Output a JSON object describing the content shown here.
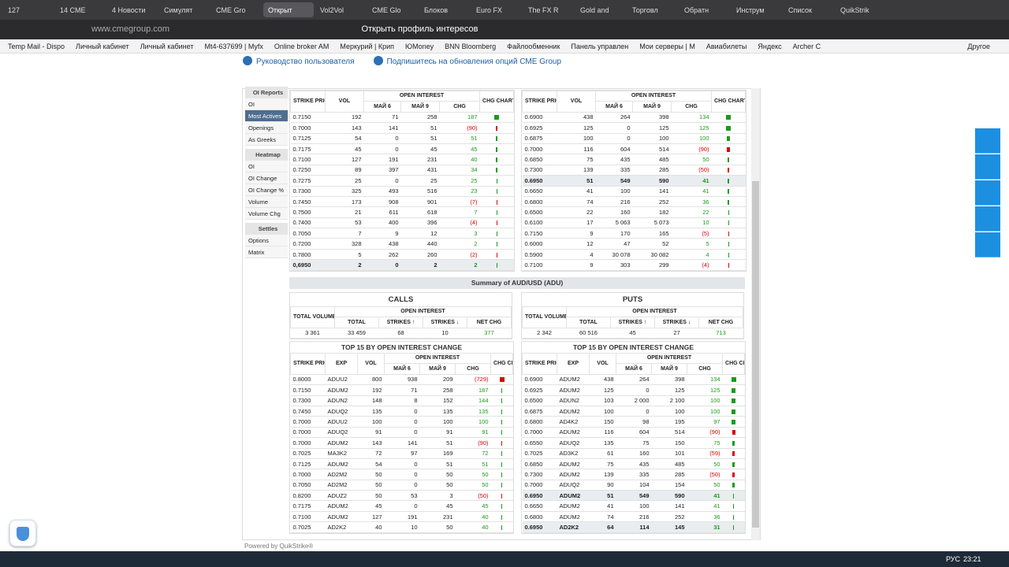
{
  "browser": {
    "tabs": [
      "127",
      "14 CME",
      "4 Новости",
      "Симулят",
      "CME Gro",
      "Открыт",
      "Vol2Vol",
      "CME Glo",
      "Блоков",
      "Euro FX",
      "The FX R",
      "Gold and",
      "Торговл",
      "Обратн",
      "Инструм",
      "Список",
      "QuikStrik"
    ],
    "active_tab": 5,
    "address": "www.cmegroup.com",
    "page_title": "Открыть профиль интересов",
    "bookmarks": [
      "Temp Mail - Dispo",
      "Личный кабинет",
      "Личный кабинет",
      "Mt4-637699 | Myfx",
      "Online broker AM",
      "Меркурий | Крип",
      "ЮMoney",
      "BNN Bloomberg",
      "Файлообменник",
      "Панель управлен",
      "Мои серверы | M",
      "Авиабилеты",
      "Яндекс",
      "Archer C"
    ],
    "bookmarks_more": "Другое"
  },
  "page": {
    "links": [
      "Руководство пользователя",
      "Подпишитесь на обновления опций CME Group"
    ],
    "sidebar": [
      {
        "label": "OI Reports",
        "kind": "head"
      },
      {
        "label": "OI"
      },
      {
        "label": "Most Actives",
        "active": true
      },
      {
        "label": "Openings"
      },
      {
        "label": "As Greeks"
      },
      {
        "label": "Heatmap",
        "kind": "head"
      },
      {
        "label": "OI"
      },
      {
        "label": "OI Change"
      },
      {
        "label": "OI Change %"
      },
      {
        "label": "Volume"
      },
      {
        "label": "Volume Chg"
      },
      {
        "label": "Settles",
        "kind": "head"
      },
      {
        "label": "Options"
      },
      {
        "label": "Matrix"
      }
    ],
    "headers": {
      "strike": "STRIKE PRICE",
      "exp": "EXP",
      "vol": "VOL",
      "oi": "OPEN INTEREST",
      "may6": "МАЙ 6",
      "may9": "МАЙ 9",
      "chg": "CHG",
      "chart": "CHG CHART",
      "total_volume": "TOTAL VOLUME",
      "total": "TOTAL",
      "up": "STRIKES ↑",
      "down": "STRIKES ↓",
      "net": "NET CHG"
    },
    "active_calls": {
      "rows": [
        [
          "0.7150",
          "192",
          "71",
          "258",
          "187"
        ],
        [
          "0.7000",
          "143",
          "141",
          "51",
          "(90)"
        ],
        [
          "0.7125",
          "54",
          "0",
          "51",
          "51"
        ],
        [
          "0.7175",
          "45",
          "0",
          "45",
          "45"
        ],
        [
          "0.7100",
          "127",
          "191",
          "231",
          "40"
        ],
        [
          "0.7250",
          "89",
          "397",
          "431",
          "34"
        ],
        [
          "0.7275",
          "25",
          "0",
          "25",
          "25"
        ],
        [
          "0.7300",
          "325",
          "493",
          "516",
          "23"
        ],
        [
          "0.7450",
          "173",
          "908",
          "901",
          "(7)"
        ],
        [
          "0.7500",
          "21",
          "611",
          "618",
          "7"
        ],
        [
          "0.7400",
          "53",
          "400",
          "396",
          "(4)"
        ],
        [
          "0.7050",
          "7",
          "9",
          "12",
          "3"
        ],
        [
          "0.7200",
          "328",
          "438",
          "440",
          "2"
        ],
        [
          "0.7800",
          "5",
          "262",
          "260",
          "(2)"
        ],
        [
          "0,6950",
          "2",
          "0",
          "2",
          "2"
        ]
      ],
      "bold_rows": [
        14
      ]
    },
    "active_puts": {
      "rows": [
        [
          "0.6900",
          "438",
          "264",
          "398",
          "134"
        ],
        [
          "0.6925",
          "125",
          "0",
          "125",
          "125"
        ],
        [
          "0.6875",
          "100",
          "0",
          "100",
          "100"
        ],
        [
          "0.7000",
          "116",
          "604",
          "514",
          "(90)"
        ],
        [
          "0.6850",
          "75",
          "435",
          "485",
          "50"
        ],
        [
          "0.7300",
          "139",
          "335",
          "285",
          "(50)"
        ],
        [
          "0.6950",
          "51",
          "549",
          "590",
          "41"
        ],
        [
          "0.6650",
          "41",
          "100",
          "141",
          "41"
        ],
        [
          "0.6800",
          "74",
          "216",
          "252",
          "36"
        ],
        [
          "0.6500",
          "22",
          "160",
          "182",
          "22"
        ],
        [
          "0.6100",
          "17",
          "5 063",
          "5 073",
          "10"
        ],
        [
          "0.7150",
          "9",
          "170",
          "165",
          "(5)"
        ],
        [
          "0.6000",
          "12",
          "47",
          "52",
          "5"
        ],
        [
          "0.5900",
          "4",
          "30 078",
          "30 082",
          "4"
        ],
        [
          "0.7100",
          "9",
          "303",
          "299",
          "(4)"
        ]
      ],
      "bold_rows": [
        6
      ]
    },
    "summary_title": "Summary of AUD/USD (ADU)",
    "calls": {
      "title": "CALLS",
      "values": [
        "3 361",
        "33 459",
        "68",
        "10",
        "377"
      ]
    },
    "puts": {
      "title": "PUTS",
      "values": [
        "2 342",
        "60 516",
        "45",
        "27",
        "713"
      ]
    },
    "top_title": "TOP 15 BY OPEN INTEREST CHANGE",
    "top_calls": {
      "rows": [
        [
          "0.8000",
          "ADUU2",
          "800",
          "938",
          "209",
          "(729)"
        ],
        [
          "0.7150",
          "ADUM2",
          "192",
          "71",
          "258",
          "187"
        ],
        [
          "0.7300",
          "ADUN2",
          "148",
          "8",
          "152",
          "144"
        ],
        [
          "0.7450",
          "ADUQ2",
          "135",
          "0",
          "135",
          "135"
        ],
        [
          "0.7000",
          "ADUU2",
          "100",
          "0",
          "100",
          "100"
        ],
        [
          "0.7000",
          "ADUQ2",
          "91",
          "0",
          "91",
          "91"
        ],
        [
          "0.7000",
          "ADUM2",
          "143",
          "141",
          "51",
          "(90)"
        ],
        [
          "0.7025",
          "MA3K2",
          "72",
          "97",
          "169",
          "72"
        ],
        [
          "0.7125",
          "ADUM2",
          "54",
          "0",
          "51",
          "51"
        ],
        [
          "0.7000",
          "AD2M2",
          "50",
          "0",
          "50",
          "50"
        ],
        [
          "0.7050",
          "AD2M2",
          "50",
          "0",
          "50",
          "50"
        ],
        [
          "0.8200",
          "ADUZ2",
          "50",
          "53",
          "3",
          "(50)"
        ],
        [
          "0.7175",
          "ADUM2",
          "45",
          "0",
          "45",
          "45"
        ],
        [
          "0.7100",
          "ADUM2",
          "127",
          "191",
          "231",
          "40"
        ],
        [
          "0.7025",
          "AD2K2",
          "40",
          "10",
          "50",
          "40"
        ]
      ],
      "bold_rows": []
    },
    "top_puts": {
      "rows": [
        [
          "0.6900",
          "ADUM2",
          "438",
          "264",
          "398",
          "134"
        ],
        [
          "0.6925",
          "ADUM2",
          "125",
          "0",
          "125",
          "125"
        ],
        [
          "0.6500",
          "ADUN2",
          "103",
          "2 000",
          "2 100",
          "100"
        ],
        [
          "0.6875",
          "ADUM2",
          "100",
          "0",
          "100",
          "100"
        ],
        [
          "0.6800",
          "AD4K2",
          "150",
          "98",
          "195",
          "97"
        ],
        [
          "0.7000",
          "ADUM2",
          "116",
          "604",
          "514",
          "(90)"
        ],
        [
          "0.6550",
          "ADUQ2",
          "135",
          "75",
          "150",
          "75"
        ],
        [
          "0.7025",
          "AD3K2",
          "61",
          "160",
          "101",
          "(59)"
        ],
        [
          "0.6850",
          "ADUM2",
          "75",
          "435",
          "485",
          "50"
        ],
        [
          "0.7300",
          "ADUM2",
          "139",
          "335",
          "285",
          "(50)"
        ],
        [
          "0.7000",
          "ADUQ2",
          "90",
          "104",
          "154",
          "50"
        ],
        [
          "0.6950",
          "ADUM2",
          "51",
          "549",
          "590",
          "41"
        ],
        [
          "0.6650",
          "ADUM2",
          "41",
          "100",
          "141",
          "41"
        ],
        [
          "0.6800",
          "ADUM2",
          "74",
          "216",
          "252",
          "36"
        ],
        [
          "0.6950",
          "AD2K2",
          "64",
          "114",
          "145",
          "31"
        ]
      ],
      "bold_rows": [
        11,
        14
      ]
    },
    "footer": "Powered by QuikStrike®"
  },
  "taskbar": {
    "lang": "РУС",
    "time": "23:21"
  }
}
